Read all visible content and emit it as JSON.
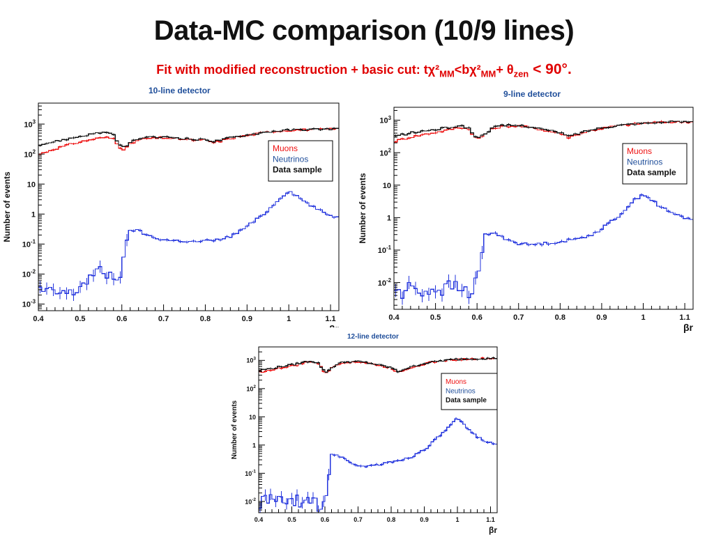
{
  "slide": {
    "title": "Data-MC comparison (10/9 lines)",
    "subtitle_prefix": "Fit with modified reconstruction + basic cut: tχ²",
    "subtitle_sub1": "MM",
    "subtitle_mid": "<bχ²",
    "subtitle_sub2": "MM",
    "subtitle_plus": "+ θ",
    "subtitle_sub3": "zen",
    "subtitle_suffix": " < 90°."
  },
  "colors": {
    "muons": "#ee1111",
    "neutrinos": "#2233dd",
    "data": "#111111",
    "title_blue": "#1f4e9a",
    "subtitle_red": "#e00000"
  },
  "chart_data": [
    {
      "type": "line",
      "title": "10-line detector",
      "xlabel": "βr",
      "ylabel": "Number of events",
      "xlim": [
        0.4,
        1.12
      ],
      "ylim": [
        0.0006,
        5000
      ],
      "y_scale": "log",
      "x_ticks": [
        "0.4",
        "0.5",
        "0.6",
        "0.7",
        "0.8",
        "0.9",
        "1",
        "1.1"
      ],
      "y_tick_labels": [
        "10^-3",
        "10^-2",
        "10^-1",
        "1",
        "10",
        "10^2",
        "10^3"
      ],
      "legend_position": "top-right",
      "legend": [
        "Muons",
        "Neutrinos",
        "Data sample"
      ],
      "x": [
        0.4,
        0.42,
        0.44,
        0.46,
        0.48,
        0.5,
        0.52,
        0.54,
        0.56,
        0.58,
        0.6,
        0.61,
        0.62,
        0.64,
        0.66,
        0.68,
        0.7,
        0.72,
        0.74,
        0.76,
        0.78,
        0.8,
        0.82,
        0.84,
        0.86,
        0.88,
        0.9,
        0.92,
        0.94,
        0.96,
        0.98,
        1.0,
        1.02,
        1.04,
        1.06,
        1.08,
        1.1,
        1.12
      ],
      "series": [
        {
          "name": "Muons",
          "values": [
            95,
            120,
            150,
            180,
            220,
            250,
            290,
            330,
            360,
            330,
            140,
            160,
            210,
            300,
            330,
            340,
            350,
            330,
            320,
            300,
            280,
            300,
            240,
            280,
            330,
            380,
            420,
            470,
            520,
            560,
            590,
            620,
            640,
            650,
            660,
            670,
            680,
            690
          ]
        },
        {
          "name": "Neutrinos",
          "values": [
            0.003,
            0.0025,
            0.0022,
            0.0025,
            0.002,
            0.004,
            0.007,
            0.012,
            0.01,
            0.009,
            0.009,
            0.1,
            0.3,
            0.28,
            0.2,
            0.16,
            0.14,
            0.13,
            0.13,
            0.12,
            0.12,
            0.13,
            0.13,
            0.15,
            0.18,
            0.25,
            0.4,
            0.6,
            1.0,
            1.8,
            3.5,
            6.0,
            4.0,
            2.5,
            1.7,
            1.2,
            0.9,
            0.75
          ]
        },
        {
          "name": "Data sample",
          "values": [
            200,
            230,
            260,
            300,
            340,
            390,
            440,
            500,
            540,
            420,
            160,
            190,
            240,
            330,
            360,
            360,
            370,
            360,
            340,
            320,
            300,
            320,
            260,
            300,
            350,
            390,
            430,
            480,
            530,
            570,
            600,
            630,
            650,
            660,
            670,
            680,
            690,
            700
          ]
        }
      ]
    },
    {
      "type": "line",
      "title": "9-line detector",
      "xlabel": "βr",
      "ylabel": "Number of events",
      "xlim": [
        0.4,
        1.12
      ],
      "ylim": [
        0.0015,
        2500
      ],
      "y_scale": "log",
      "x_ticks": [
        "0.4",
        "0.5",
        "0.6",
        "0.7",
        "0.8",
        "0.9",
        "1",
        "1.1"
      ],
      "y_tick_labels": [
        "10^-2",
        "10^-1",
        "1",
        "10",
        "10^2",
        "10^3"
      ],
      "legend_position": "top-right",
      "legend": [
        "Muons",
        "Neutrinos",
        "Data sample"
      ],
      "x": [
        0.4,
        0.42,
        0.44,
        0.46,
        0.48,
        0.5,
        0.52,
        0.54,
        0.56,
        0.58,
        0.6,
        0.61,
        0.62,
        0.64,
        0.66,
        0.68,
        0.7,
        0.72,
        0.74,
        0.76,
        0.78,
        0.8,
        0.82,
        0.84,
        0.86,
        0.88,
        0.9,
        0.92,
        0.94,
        0.96,
        0.98,
        1.0,
        1.02,
        1.04,
        1.06,
        1.08,
        1.1,
        1.12
      ],
      "series": [
        {
          "name": "Muons",
          "values": [
            220,
            260,
            300,
            340,
            380,
            420,
            470,
            540,
            610,
            520,
            260,
            300,
            380,
            560,
            640,
            660,
            660,
            620,
            560,
            500,
            440,
            400,
            300,
            360,
            430,
            500,
            560,
            620,
            680,
            720,
            760,
            800,
            830,
            850,
            870,
            880,
            890,
            900
          ]
        },
        {
          "name": "Neutrinos",
          "values": [
            0.007,
            0.004,
            0.008,
            0.006,
            0.005,
            0.007,
            0.006,
            0.008,
            0.006,
            0.005,
            0.01,
            0.06,
            0.3,
            0.35,
            0.25,
            0.2,
            0.16,
            0.15,
            0.15,
            0.16,
            0.17,
            0.18,
            0.2,
            0.22,
            0.26,
            0.32,
            0.45,
            0.7,
            1.1,
            2.0,
            3.5,
            5.5,
            3.5,
            2.2,
            1.6,
            1.2,
            1.0,
            0.85
          ]
        },
        {
          "name": "Data sample",
          "values": [
            320,
            360,
            400,
            440,
            480,
            520,
            560,
            620,
            680,
            560,
            280,
            320,
            400,
            600,
            680,
            690,
            690,
            650,
            590,
            520,
            460,
            420,
            320,
            380,
            450,
            520,
            580,
            640,
            700,
            740,
            780,
            820,
            850,
            870,
            880,
            890,
            900,
            910
          ]
        }
      ]
    },
    {
      "type": "line",
      "title": "12-line detector",
      "xlabel": "βr",
      "ylabel": "Number of events",
      "xlim": [
        0.4,
        1.12
      ],
      "ylim": [
        0.004,
        3000
      ],
      "y_scale": "log",
      "x_ticks": [
        "0.4",
        "0.5",
        "0.6",
        "0.7",
        "0.8",
        "0.9",
        "1",
        "1.1"
      ],
      "y_tick_labels": [
        "10^-2",
        "10^-1",
        "1",
        "10",
        "10^2",
        "10^3"
      ],
      "legend_position": "top-right",
      "legend": [
        "Muons",
        "Neutrinos",
        "Data sample"
      ],
      "x": [
        0.4,
        0.42,
        0.44,
        0.46,
        0.48,
        0.5,
        0.52,
        0.54,
        0.56,
        0.58,
        0.6,
        0.61,
        0.62,
        0.64,
        0.66,
        0.68,
        0.7,
        0.72,
        0.74,
        0.76,
        0.78,
        0.8,
        0.82,
        0.84,
        0.86,
        0.88,
        0.9,
        0.92,
        0.94,
        0.96,
        0.98,
        1.0,
        1.02,
        1.04,
        1.06,
        1.08,
        1.1,
        1.12
      ],
      "series": [
        {
          "name": "Muons",
          "values": [
            380,
            420,
            460,
            520,
            580,
            640,
            700,
            820,
            920,
            760,
            360,
            420,
            520,
            760,
            860,
            880,
            880,
            830,
            760,
            680,
            600,
            540,
            380,
            470,
            560,
            660,
            760,
            840,
            920,
            980,
            1030,
            1070,
            1100,
            1120,
            1140,
            1150,
            1160,
            1170
          ]
        },
        {
          "name": "Neutrinos",
          "values": [
            0.008,
            0.012,
            0.011,
            0.01,
            0.012,
            0.008,
            0.011,
            0.008,
            0.012,
            0.007,
            0.01,
            0.06,
            0.5,
            0.4,
            0.35,
            0.22,
            0.18,
            0.18,
            0.19,
            0.2,
            0.22,
            0.25,
            0.28,
            0.32,
            0.38,
            0.5,
            0.7,
            1.1,
            1.8,
            3.0,
            5.0,
            9.0,
            5.0,
            3.0,
            2.0,
            1.5,
            1.2,
            1.1
          ]
        },
        {
          "name": "Data sample",
          "values": [
            440,
            480,
            520,
            580,
            640,
            700,
            780,
            880,
            960,
            800,
            380,
            440,
            540,
            780,
            880,
            900,
            900,
            850,
            780,
            700,
            620,
            560,
            400,
            490,
            580,
            680,
            780,
            860,
            940,
            1000,
            1050,
            1090,
            1120,
            1140,
            1160,
            1170,
            1180,
            1190
          ]
        }
      ]
    }
  ]
}
